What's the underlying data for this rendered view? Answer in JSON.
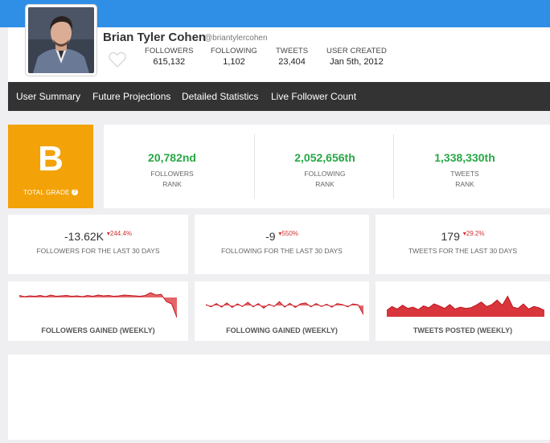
{
  "profile": {
    "name": "Brian Tyler Cohen",
    "handle": "@briantylercohen",
    "stats": [
      {
        "label": "FOLLOWERS",
        "value": "615,132"
      },
      {
        "label": "FOLLOWING",
        "value": "1,102"
      },
      {
        "label": "TWEETS",
        "value": "23,404"
      },
      {
        "label": "USER CREATED",
        "value": "Jan 5th, 2012"
      }
    ]
  },
  "nav": {
    "items": [
      "User Summary",
      "Future Projections",
      "Detailed Statistics",
      "Live Follower Count"
    ]
  },
  "grade": {
    "letter": "B",
    "label": "TOTAL GRADE",
    "help": "?"
  },
  "ranks": [
    {
      "value": "20,782nd",
      "label1": "FOLLOWERS",
      "label2": "RANK"
    },
    {
      "value": "2,052,656th",
      "label1": "FOLLOWING",
      "label2": "RANK"
    },
    {
      "value": "1,338,330th",
      "label1": "TWEETS",
      "label2": "RANK"
    }
  ],
  "changes": [
    {
      "value": "-13.62K",
      "delta": "▾244.4%",
      "label": "FOLLOWERS FOR THE LAST 30 DAYS"
    },
    {
      "value": "-9",
      "delta": "▾550%",
      "label": "FOLLOWING FOR THE LAST 30 DAYS"
    },
    {
      "value": "179",
      "delta": "▾29.2%",
      "label": "TWEETS FOR THE LAST 30 DAYS"
    }
  ],
  "sparklines": [
    {
      "title": "FOLLOWERS GAINED (WEEKLY)",
      "values": [
        0.5,
        0.2,
        0.4,
        0.3,
        0.5,
        0.2,
        0.6,
        0.3,
        0.4,
        0.5,
        0.3,
        0.4,
        0.2,
        0.5,
        0.3,
        0.6,
        0.4,
        0.5,
        0.3,
        0.4,
        0.6,
        0.5,
        0.4,
        0.3,
        0.5,
        1.2,
        0.6,
        0.8,
        -1.0,
        -1.6,
        -5.0
      ]
    },
    {
      "title": "FOLLOWING GAINED (WEEKLY)",
      "values": [
        0.3,
        -0.4,
        0.6,
        -0.5,
        0.8,
        -0.6,
        0.5,
        -0.3,
        1.0,
        -0.4,
        0.6,
        -0.8,
        0.4,
        -0.3,
        1.2,
        -0.5,
        0.7,
        -0.6,
        0.5,
        0.8,
        -0.4,
        0.6,
        -0.3,
        0.4,
        -0.5,
        0.6,
        0.3,
        -0.4,
        0.5,
        0.2,
        -2.8
      ]
    },
    {
      "title": "TWEETS POSTED (WEEKLY)",
      "values": [
        2.0,
        3.2,
        2.4,
        3.6,
        2.6,
        3.0,
        2.2,
        3.4,
        2.8,
        4.0,
        3.4,
        2.6,
        3.8,
        2.4,
        3.0,
        2.6,
        2.8,
        3.6,
        4.6,
        3.2,
        3.8,
        5.2,
        3.6,
        6.4,
        3.0,
        2.6,
        4.0,
        2.4,
        3.2,
        2.8,
        2.0
      ]
    }
  ],
  "colors": {
    "accent": "#2f8ee5",
    "grade": "#f3a208",
    "rank": "#28a745",
    "negative": "#d32f2f",
    "nav": "#333333"
  }
}
